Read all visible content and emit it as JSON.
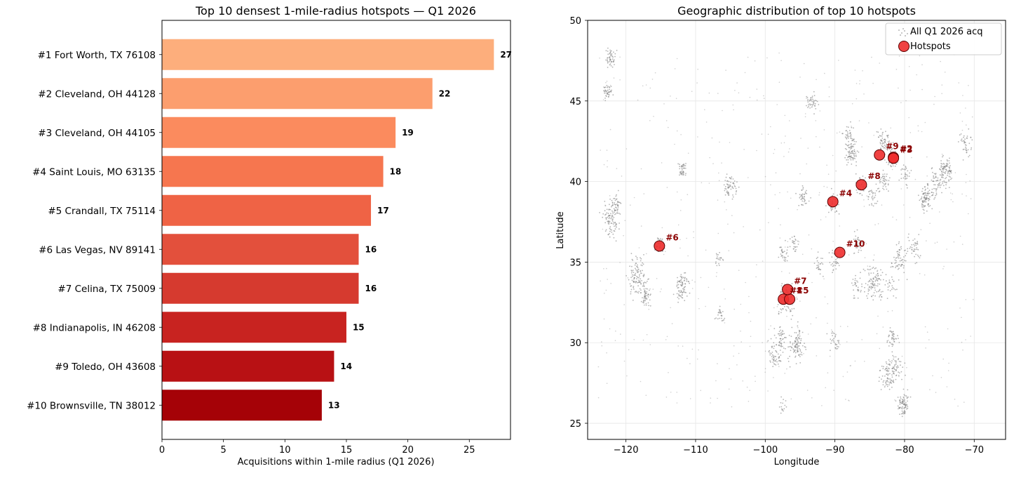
{
  "chart_data": [
    {
      "type": "bar",
      "orientation": "horizontal",
      "title": "Top 10 densest 1-mile-radius hotspots — Q1 2026",
      "xlabel": "Acquisitions within 1-mile radius (Q1 2026)",
      "ylabel": "",
      "xlim": [
        0,
        28.35
      ],
      "xticks": [
        "0",
        "5",
        "10",
        "15",
        "20",
        "25"
      ],
      "categories": [
        "#1  Fort Worth, TX 76108",
        "#2  Cleveland, OH 44128",
        "#3  Cleveland, OH 44105",
        "#4  Saint Louis, MO 63135",
        "#5  Crandall, TX 75114",
        "#6  Las Vegas, NV 89141",
        "#7  Celina, TX 75009",
        "#8  Indianapolis, IN 46208",
        "#9  Toledo, OH 43608",
        "#10  Brownsville, TN 38012"
      ],
      "values": [
        27,
        22,
        19,
        18,
        17,
        16,
        16,
        15,
        14,
        13
      ],
      "value_labels": [
        "27",
        "22",
        "19",
        "18",
        "17",
        "16",
        "16",
        "15",
        "14",
        "13"
      ],
      "colors": [
        "#fdae7c",
        "#fc9e6e",
        "#fb8b5e",
        "#f6764f",
        "#ef6345",
        "#e3503c",
        "#d63a2f",
        "#c82320",
        "#b81114",
        "#a50207"
      ],
      "grid": false
    },
    {
      "type": "scatter",
      "title": "Geographic distribution of top 10 hotspots",
      "xlabel": "Longitude",
      "ylabel": "Latitude",
      "xlim": [
        -125.5,
        -65.5
      ],
      "ylim": [
        24,
        50
      ],
      "xticks": [
        "−120",
        "−110",
        "−100",
        "−90",
        "−80",
        "−70"
      ],
      "yticks": [
        "25",
        "30",
        "35",
        "40",
        "45",
        "50"
      ],
      "grid": true,
      "legend_position": "top-right",
      "series": [
        {
          "name": "All Q1 2026 acq",
          "color": "#777777",
          "clusters": [
            {
              "lon": -122.2,
              "lat": 37.6,
              "n": 90,
              "spread": 0.6
            },
            {
              "lon": -121.4,
              "lat": 38.6,
              "n": 40,
              "spread": 0.4
            },
            {
              "lon": -118.2,
              "lat": 34.0,
              "n": 120,
              "spread": 0.7
            },
            {
              "lon": -117.1,
              "lat": 32.8,
              "n": 40,
              "spread": 0.3
            },
            {
              "lon": -122.3,
              "lat": 47.6,
              "n": 50,
              "spread": 0.4
            },
            {
              "lon": -122.6,
              "lat": 45.5,
              "n": 40,
              "spread": 0.3
            },
            {
              "lon": -112.0,
              "lat": 33.5,
              "n": 80,
              "spread": 0.5
            },
            {
              "lon": -115.1,
              "lat": 36.1,
              "n": 40,
              "spread": 0.3
            },
            {
              "lon": -104.9,
              "lat": 39.7,
              "n": 60,
              "spread": 0.5
            },
            {
              "lon": -111.9,
              "lat": 40.7,
              "n": 40,
              "spread": 0.3
            },
            {
              "lon": -106.6,
              "lat": 35.1,
              "n": 20,
              "spread": 0.3
            },
            {
              "lon": -97.0,
              "lat": 32.8,
              "n": 100,
              "spread": 0.6
            },
            {
              "lon": -95.4,
              "lat": 29.8,
              "n": 100,
              "spread": 0.6
            },
            {
              "lon": -98.5,
              "lat": 29.4,
              "n": 60,
              "spread": 0.5
            },
            {
              "lon": -97.7,
              "lat": 30.3,
              "n": 40,
              "spread": 0.4
            },
            {
              "lon": -97.5,
              "lat": 35.5,
              "n": 30,
              "spread": 0.4
            },
            {
              "lon": -95.9,
              "lat": 36.1,
              "n": 25,
              "spread": 0.3
            },
            {
              "lon": -94.6,
              "lat": 39.1,
              "n": 40,
              "spread": 0.4
            },
            {
              "lon": -90.2,
              "lat": 38.6,
              "n": 40,
              "spread": 0.4
            },
            {
              "lon": -87.7,
              "lat": 41.9,
              "n": 80,
              "spread": 0.5
            },
            {
              "lon": -86.2,
              "lat": 39.8,
              "n": 40,
              "spread": 0.4
            },
            {
              "lon": -83.0,
              "lat": 42.4,
              "n": 60,
              "spread": 0.5
            },
            {
              "lon": -81.7,
              "lat": 41.5,
              "n": 40,
              "spread": 0.4
            },
            {
              "lon": -83.0,
              "lat": 40.0,
              "n": 40,
              "spread": 0.4
            },
            {
              "lon": -84.5,
              "lat": 39.1,
              "n": 30,
              "spread": 0.4
            },
            {
              "lon": -86.8,
              "lat": 36.2,
              "n": 40,
              "spread": 0.4
            },
            {
              "lon": -90.0,
              "lat": 35.1,
              "n": 30,
              "spread": 0.4
            },
            {
              "lon": -84.4,
              "lat": 33.8,
              "n": 100,
              "spread": 0.7
            },
            {
              "lon": -80.8,
              "lat": 35.2,
              "n": 60,
              "spread": 0.5
            },
            {
              "lon": -78.6,
              "lat": 35.8,
              "n": 40,
              "spread": 0.5
            },
            {
              "lon": -81.4,
              "lat": 28.5,
              "n": 60,
              "spread": 0.5
            },
            {
              "lon": -82.5,
              "lat": 27.9,
              "n": 60,
              "spread": 0.5
            },
            {
              "lon": -80.2,
              "lat": 26.2,
              "n": 80,
              "spread": 0.4
            },
            {
              "lon": -81.7,
              "lat": 30.3,
              "n": 40,
              "spread": 0.4
            },
            {
              "lon": -77.0,
              "lat": 38.9,
              "n": 60,
              "spread": 0.5
            },
            {
              "lon": -75.2,
              "lat": 40.0,
              "n": 60,
              "spread": 0.5
            },
            {
              "lon": -74.0,
              "lat": 40.8,
              "n": 80,
              "spread": 0.5
            },
            {
              "lon": -71.1,
              "lat": 42.3,
              "n": 40,
              "spread": 0.5
            },
            {
              "lon": -79.9,
              "lat": 40.4,
              "n": 30,
              "spread": 0.4
            },
            {
              "lon": -76.6,
              "lat": 39.3,
              "n": 30,
              "spread": 0.4
            },
            {
              "lon": -93.3,
              "lat": 45.0,
              "n": 40,
              "spread": 0.4
            },
            {
              "lon": -88.0,
              "lat": 43.0,
              "n": 30,
              "spread": 0.4
            },
            {
              "lon": -92.3,
              "lat": 34.7,
              "n": 25,
              "spread": 0.4
            },
            {
              "lon": -90.1,
              "lat": 30.0,
              "n": 30,
              "spread": 0.4
            },
            {
              "lon": -86.8,
              "lat": 33.5,
              "n": 30,
              "spread": 0.4
            },
            {
              "lon": -82.0,
              "lat": 33.5,
              "n": 25,
              "spread": 0.5
            },
            {
              "lon": -106.5,
              "lat": 31.8,
              "n": 25,
              "spread": 0.3
            },
            {
              "lon": -97.5,
              "lat": 26.2,
              "n": 15,
              "spread": 0.3
            }
          ]
        },
        {
          "name": "Hotspots",
          "color": "#ee2e2e",
          "points": [
            {
              "label": "#1",
              "lon": -97.4,
              "lat": 32.7
            },
            {
              "label": "#2",
              "lon": -81.6,
              "lat": 41.5
            },
            {
              "label": "#3",
              "lon": -81.6,
              "lat": 41.45
            },
            {
              "label": "#4",
              "lon": -90.3,
              "lat": 38.75
            },
            {
              "label": "#5",
              "lon": -96.5,
              "lat": 32.7
            },
            {
              "label": "#6",
              "lon": -115.2,
              "lat": 36.0
            },
            {
              "label": "#7",
              "lon": -96.8,
              "lat": 33.3
            },
            {
              "label": "#8",
              "lon": -86.2,
              "lat": 39.8
            },
            {
              "label": "#9",
              "lon": -83.6,
              "lat": 41.65
            },
            {
              "label": "#10",
              "lon": -89.3,
              "lat": 35.6
            }
          ]
        }
      ]
    }
  ]
}
